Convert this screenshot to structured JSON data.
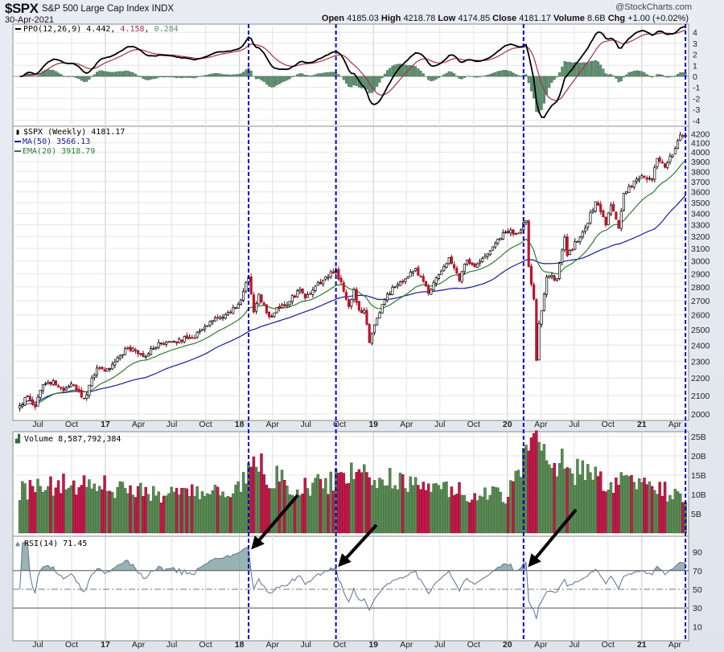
{
  "header": {
    "symbol": "$SPX",
    "name": "S&P 500 Large Cap Index",
    "exchange": "INDX",
    "date": "30-Apr-2021",
    "brand": "@StockCharts.com",
    "open_label": "Open",
    "open": "4185.03",
    "high_label": "High",
    "high": "4218.78",
    "low_label": "Low",
    "low": "4174.85",
    "close_label": "Close",
    "close": "4181.17",
    "volume_label": "Volume",
    "volume": "8.6B",
    "chg_label": "Chg",
    "chg": "+1.00 (+0.02%)"
  },
  "legends": {
    "ppo": "PPO(12,26,9)",
    "ppo_value": "4.442",
    "ppo_signal": "4.158",
    "ppo_hist": "0.284",
    "price": "$SPX (Weekly) 4181.17",
    "ma": "MA(50) 3566.13",
    "ema": "EMA(20) 3918.79",
    "volume": "Volume 8,587,792,384",
    "rsi": "RSI(14) 71.45"
  },
  "colors": {
    "up_candle": "#ffffff",
    "down_candle": "#d1122f",
    "ma50": "#1a1aa0",
    "ema20": "#2e7d32",
    "ppo": "#000000",
    "signal": "#a3304f",
    "histogram": "#5f8f70",
    "vol_up": "#5a8a55",
    "vol_down": "#c2194a",
    "rsi": "#6a7a9a",
    "marker": "#0000cc"
  },
  "chart_data": {
    "type": "candlestick",
    "interval": "weekly",
    "price_scale": "log",
    "price_ticks": [
      2000,
      2100,
      2200,
      2300,
      2400,
      2500,
      2600,
      2700,
      2800,
      2900,
      3000,
      3100,
      3200,
      3300,
      3400,
      3500,
      3600,
      3700,
      3800,
      3900,
      4000,
      4100,
      4200
    ],
    "ppo_ticks": [
      4,
      3,
      2,
      1,
      0,
      -1,
      -2,
      -3,
      -4
    ],
    "volume_ticks": [
      "25B",
      "20B",
      "15B",
      "10B",
      "5B"
    ],
    "volume_tick_values": [
      25,
      20,
      15,
      10,
      5
    ],
    "rsi_ticks": [
      90,
      70,
      50,
      30,
      10
    ],
    "x_ticks": [
      {
        "label": "Jul",
        "date": "2016-07-01"
      },
      {
        "label": "Oct",
        "date": "2016-10-01"
      },
      {
        "label": "17",
        "date": "2017-01-01",
        "bold": true
      },
      {
        "label": "Apr",
        "date": "2017-04-01"
      },
      {
        "label": "Jul",
        "date": "2017-07-01"
      },
      {
        "label": "Oct",
        "date": "2017-10-01"
      },
      {
        "label": "18",
        "date": "2018-01-01",
        "bold": true
      },
      {
        "label": "Apr",
        "date": "2018-04-01"
      },
      {
        "label": "Jul",
        "date": "2018-07-01"
      },
      {
        "label": "Oct",
        "date": "2018-10-01"
      },
      {
        "label": "19",
        "date": "2019-01-01",
        "bold": true
      },
      {
        "label": "Apr",
        "date": "2019-04-01"
      },
      {
        "label": "Jul",
        "date": "2019-07-01"
      },
      {
        "label": "Oct",
        "date": "2019-10-01"
      },
      {
        "label": "20",
        "date": "2020-01-01",
        "bold": true
      },
      {
        "label": "Apr",
        "date": "2020-04-01"
      },
      {
        "label": "Jul",
        "date": "2020-07-01"
      },
      {
        "label": "Oct",
        "date": "2020-10-01"
      },
      {
        "label": "21",
        "date": "2021-01-01",
        "bold": true
      },
      {
        "label": "Apr",
        "date": "2021-04-01"
      }
    ],
    "marker_dates": [
      "2018-01-26",
      "2018-09-21",
      "2020-02-14",
      "2021-04-30"
    ],
    "close_anchors": [
      [
        "2016-05-13",
        2046
      ],
      [
        "2016-06-03",
        2099
      ],
      [
        "2016-06-24",
        2037
      ],
      [
        "2016-07-15",
        2161
      ],
      [
        "2016-08-12",
        2184
      ],
      [
        "2016-09-09",
        2128
      ],
      [
        "2016-09-30",
        2168
      ],
      [
        "2016-11-04",
        2085
      ],
      [
        "2016-12-09",
        2259
      ],
      [
        "2016-12-30",
        2239
      ],
      [
        "2017-01-27",
        2295
      ],
      [
        "2017-03-03",
        2383
      ],
      [
        "2017-04-14",
        2329
      ],
      [
        "2017-05-26",
        2416
      ],
      [
        "2017-06-30",
        2423
      ],
      [
        "2017-08-11",
        2441
      ],
      [
        "2017-08-25",
        2444
      ],
      [
        "2017-09-29",
        2519
      ],
      [
        "2017-10-27",
        2581
      ],
      [
        "2017-11-24",
        2602
      ],
      [
        "2017-12-29",
        2674
      ],
      [
        "2018-01-26",
        2873
      ],
      [
        "2018-02-09",
        2620
      ],
      [
        "2018-02-23",
        2747
      ],
      [
        "2018-03-23",
        2588
      ],
      [
        "2018-04-27",
        2670
      ],
      [
        "2018-05-04",
        2663
      ],
      [
        "2018-06-15",
        2780
      ],
      [
        "2018-06-29",
        2718
      ],
      [
        "2018-08-24",
        2875
      ],
      [
        "2018-09-21",
        2930
      ],
      [
        "2018-10-12",
        2767
      ],
      [
        "2018-10-26",
        2658
      ],
      [
        "2018-11-09",
        2781
      ],
      [
        "2018-11-23",
        2633
      ],
      [
        "2018-12-07",
        2633
      ],
      [
        "2018-12-21",
        2417
      ],
      [
        "2019-01-04",
        2532
      ],
      [
        "2019-02-01",
        2707
      ],
      [
        "2019-03-01",
        2803
      ],
      [
        "2019-04-26",
        2940
      ],
      [
        "2019-05-31",
        2752
      ],
      [
        "2019-07-26",
        3026
      ],
      [
        "2019-08-23",
        2847
      ],
      [
        "2019-09-13",
        3007
      ],
      [
        "2019-10-04",
        2952
      ],
      [
        "2019-11-29",
        3141
      ],
      [
        "2019-12-27",
        3240
      ],
      [
        "2020-01-31",
        3225
      ],
      [
        "2020-02-21",
        3338
      ],
      [
        "2020-02-28",
        2954
      ],
      [
        "2020-03-13",
        2711
      ],
      [
        "2020-03-20",
        2305
      ],
      [
        "2020-03-27",
        2541
      ],
      [
        "2020-04-17",
        2875
      ],
      [
        "2020-05-15",
        2864
      ],
      [
        "2020-06-05",
        3194
      ],
      [
        "2020-06-12",
        3041
      ],
      [
        "2020-07-31",
        3271
      ],
      [
        "2020-08-28",
        3508
      ],
      [
        "2020-09-25",
        3298
      ],
      [
        "2020-10-09",
        3477
      ],
      [
        "2020-10-30",
        3270
      ],
      [
        "2020-11-13",
        3585
      ],
      [
        "2020-12-31",
        3756
      ],
      [
        "2021-01-29",
        3714
      ],
      [
        "2021-02-12",
        3934
      ],
      [
        "2021-03-05",
        3842
      ],
      [
        "2021-04-01",
        4020
      ],
      [
        "2021-04-16",
        4185
      ],
      [
        "2021-04-30",
        4181.17
      ]
    ],
    "volume_anchors_billions": [
      [
        "2016-05-13",
        11
      ],
      [
        "2016-11-04",
        13
      ],
      [
        "2017-06-01",
        10
      ],
      [
        "2017-12-29",
        11
      ],
      [
        "2018-02-09",
        18
      ],
      [
        "2018-06-01",
        11
      ],
      [
        "2018-12-21",
        16
      ],
      [
        "2019-06-01",
        11
      ],
      [
        "2019-12-27",
        10
      ],
      [
        "2020-03-13",
        25
      ],
      [
        "2020-06-12",
        17
      ],
      [
        "2020-09-25",
        13
      ],
      [
        "2021-01-29",
        12
      ],
      [
        "2021-04-30",
        8.6
      ]
    ]
  }
}
